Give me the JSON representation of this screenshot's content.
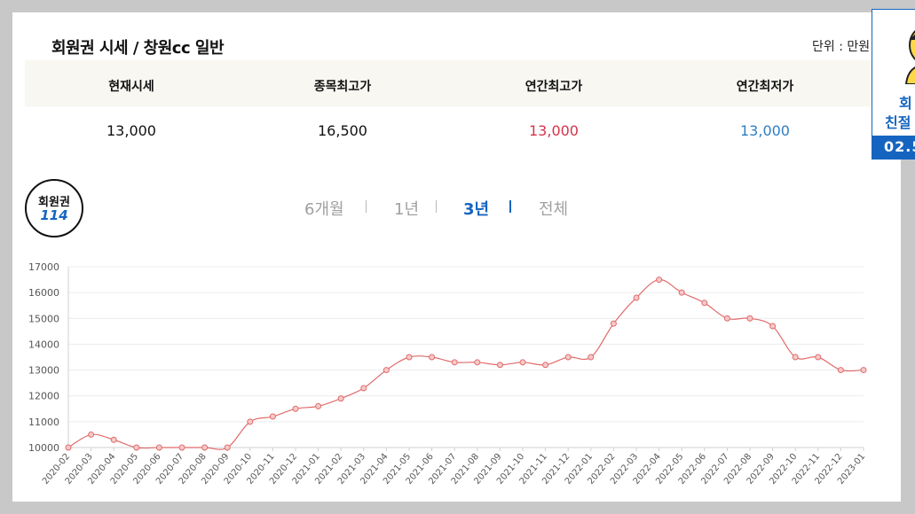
{
  "header": {
    "title": "회원권 시세 / 창원cc 일반",
    "unit": "단위 : 만원"
  },
  "summary": {
    "headers": [
      "현재시세",
      "종목최고가",
      "연간최고가",
      "연간최저가"
    ],
    "values": [
      "13,000",
      "16,500",
      "13,000",
      "13,000"
    ],
    "colors": {
      "default": "#111111",
      "annual_high": "#d6334a",
      "annual_low": "#2f7ec2"
    }
  },
  "logo": {
    "line1": "회원권",
    "line2": "114"
  },
  "tabs": [
    {
      "label": "6개월",
      "active": false
    },
    {
      "label": "1년",
      "active": false
    },
    {
      "label": "3년",
      "active": true
    },
    {
      "label": "전체",
      "active": false
    }
  ],
  "ad": {
    "line1": "회",
    "line2": "친절",
    "line3": "02.5"
  },
  "chart_data": {
    "type": "line",
    "categories": [
      "2020-02",
      "2020-03",
      "2020-04",
      "2020-05",
      "2020-06",
      "2020-07",
      "2020-08",
      "2020-09",
      "2020-10",
      "2020-11",
      "2020-12",
      "2021-01",
      "2021-02",
      "2021-03",
      "2021-04",
      "2021-05",
      "2021-06",
      "2021-07",
      "2021-08",
      "2021-09",
      "2021-10",
      "2021-11",
      "2021-12",
      "2022-01",
      "2022-02",
      "2022-03",
      "2022-04",
      "2022-05",
      "2022-06",
      "2022-07",
      "2022-08",
      "2022-09",
      "2022-10",
      "2022-11",
      "2022-12",
      "2023-01"
    ],
    "series": [
      {
        "values": [
          10000,
          10500,
          10300,
          10000,
          10000,
          10000,
          10000,
          10000,
          11000,
          11200,
          11500,
          11600,
          11900,
          12300,
          13000,
          13500,
          13500,
          13300,
          13300,
          13200,
          13300,
          13200,
          13500,
          13500,
          14800,
          15800,
          16500,
          16000,
          15600,
          15000,
          15000,
          14700,
          13500,
          13500,
          13000,
          13000
        ]
      }
    ],
    "ylim": [
      10000,
      17000
    ],
    "yticks": [
      10000,
      11000,
      12000,
      13000,
      14000,
      15000,
      16000,
      17000
    ],
    "grid": true,
    "line_color": "#e06b6b"
  }
}
